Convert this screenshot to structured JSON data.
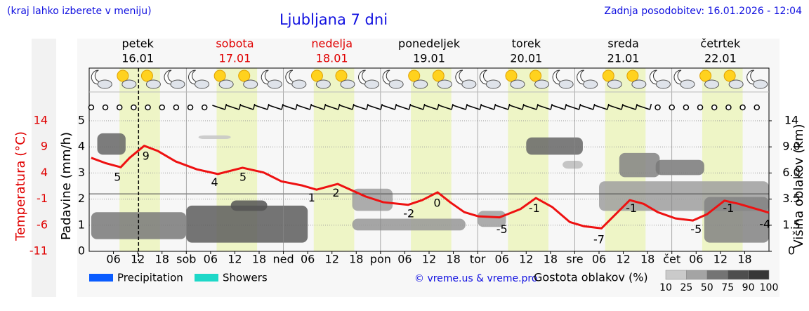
{
  "chart_data": {
    "type": "line",
    "note": "(kraj lahko izberete v meniju)",
    "title": "Ljubljana 7 dni",
    "updated": "Zadnja posodobitev: 16.01.2026 - 12:04",
    "days": [
      {
        "name": "petek",
        "date": "16.01",
        "color": "#000000"
      },
      {
        "name": "sobota",
        "date": "17.01",
        "color": "#e00000"
      },
      {
        "name": "nedelja",
        "date": "18.01",
        "color": "#e00000"
      },
      {
        "name": "ponedeljek",
        "date": "19.01",
        "color": "#000000"
      },
      {
        "name": "torek",
        "date": "20.01",
        "color": "#000000"
      },
      {
        "name": "sreda",
        "date": "21.01",
        "color": "#000000"
      },
      {
        "name": "četrtek",
        "date": "22.01",
        "color": "#000000"
      }
    ],
    "xlim": [
      0,
      168
    ],
    "xticks": [
      {
        "value": 6,
        "label": "06"
      },
      12,
      18,
      {
        "value": 24,
        "label": "sob"
      },
      {
        "value": 30,
        "label": "06"
      },
      {
        "value": 36,
        "label": "12"
      },
      {
        "value": 42,
        "label": "18"
      },
      {
        "value": 48,
        "label": "ned"
      },
      {
        "value": 54,
        "label": "06"
      },
      {
        "value": 60,
        "label": "12"
      },
      {
        "value": 66,
        "label": "18"
      },
      {
        "value": 72,
        "label": "pon"
      },
      {
        "value": 78,
        "label": "06"
      },
      {
        "value": 84,
        "label": "12"
      },
      {
        "value": 90,
        "label": "18"
      },
      {
        "value": 96,
        "label": "tor"
      },
      {
        "value": 102,
        "label": "06"
      },
      {
        "value": 108,
        "label": "12"
      },
      {
        "value": 114,
        "label": "18"
      },
      {
        "value": 120,
        "label": "sre"
      },
      {
        "value": 126,
        "label": "06"
      },
      {
        "value": 132,
        "label": "12"
      },
      {
        "value": 138,
        "label": "18"
      },
      {
        "value": 144,
        "label": "čet"
      },
      {
        "value": 150,
        "label": "06"
      },
      {
        "value": 156,
        "label": "12"
      },
      {
        "value": 162,
        "label": "18"
      }
    ],
    "now_hour": 12.2,
    "daylight_hours": [
      7.5,
      17.5
    ],
    "daylight_color": "#eef5c6",
    "temp_axis": {
      "label": "Temperatura (°C)",
      "color": "#e00000",
      "ylim": [
        -11,
        14
      ],
      "yticks": [
        -11,
        -6,
        -1,
        4,
        9,
        14
      ],
      "freezing": 0
    },
    "precip_axis": {
      "label": "Padavine (mm/h)",
      "ylim": [
        0,
        5
      ],
      "yticks": [
        0,
        1,
        2,
        3,
        4,
        5
      ]
    },
    "cloud_axis": {
      "label": "Višina oblakov (km)",
      "yticks": [
        0,
        1.5,
        3.5,
        {
          "value": 6,
          "label": "6.0"
        },
        {
          "value": 9,
          "label": "9.0"
        },
        14
      ]
    },
    "series": [
      {
        "name": "Temperatura",
        "color": "#ee1111",
        "x": [
          0.5,
          4,
          7.8,
          10,
          13.6,
          17,
          21.4,
          26.6,
          31.8,
          37.9,
          43.1,
          47.5,
          52.7,
          56.2,
          61.4,
          68.3,
          72.7,
          78.8,
          82.3,
          86.1,
          89.2,
          92.7,
          96.2,
          101.4,
          106.6,
          110.4,
          114.4,
          118.8,
          122.3,
          126.6,
          130.1,
          133.6,
          137,
          140.5,
          144.9,
          149.2,
          152.7,
          157,
          160.5,
          164.9,
          168
        ],
        "values": [
          6.9,
          5.9,
          5.1,
          6.9,
          9.2,
          8.2,
          6.2,
          4.7,
          3.8,
          5.0,
          4.1,
          2.4,
          1.6,
          0.8,
          1.9,
          -0.5,
          -1.6,
          -2.1,
          -1.2,
          0.3,
          -1.6,
          -3.5,
          -4.3,
          -4.5,
          -2.9,
          -0.8,
          -2.5,
          -5.4,
          -6.2,
          -6.6,
          -3.9,
          -1.2,
          -1.9,
          -3.5,
          -4.7,
          -5.1,
          -3.9,
          -1.3,
          -1.9,
          -2.9,
          -3.6
        ]
      }
    ],
    "temp_labels": [
      {
        "x": 7,
        "value": 5
      },
      {
        "x": 14,
        "value": 9
      },
      {
        "x": 31,
        "value": 4
      },
      {
        "x": 38,
        "value": 5
      },
      {
        "x": 55,
        "value": 1
      },
      {
        "x": 61,
        "value": 2
      },
      {
        "x": 79,
        "value": -2
      },
      {
        "x": 86,
        "value": 0
      },
      {
        "x": 102,
        "value": -5
      },
      {
        "x": 110,
        "value": -1
      },
      {
        "x": 126,
        "value": -7
      },
      {
        "x": 134,
        "value": -1
      },
      {
        "x": 150,
        "value": -5
      },
      {
        "x": 158,
        "value": -1
      },
      {
        "x": 167,
        "value": -4
      }
    ],
    "clouds": [
      {
        "start": 2,
        "end": 9,
        "bottom": 8.1,
        "top": 11.6,
        "density": 70
      },
      {
        "start": 0.5,
        "end": 24,
        "bottom": 0.7,
        "top": 2.5,
        "density": 60
      },
      {
        "start": 24,
        "end": 54,
        "bottom": 0.5,
        "top": 3.0,
        "density": 75
      },
      {
        "start": 35,
        "end": 44,
        "bottom": 2.6,
        "top": 3.4,
        "density": 80
      },
      {
        "start": 27,
        "end": 35,
        "bottom": 10.5,
        "top": 11.2,
        "density": 20
      },
      {
        "start": 65,
        "end": 75,
        "bottom": 2.6,
        "top": 4.5,
        "density": 40
      },
      {
        "start": 65,
        "end": 93,
        "bottom": 1.2,
        "top": 2.0,
        "density": 45
      },
      {
        "start": 96,
        "end": 103,
        "bottom": 1.4,
        "top": 2.6,
        "density": 40
      },
      {
        "start": 108,
        "end": 122,
        "bottom": 8.1,
        "top": 10.8,
        "density": 70
      },
      {
        "start": 117,
        "end": 122,
        "bottom": 6.5,
        "top": 7.4,
        "density": 25
      },
      {
        "start": 126,
        "end": 168,
        "bottom": 2.6,
        "top": 5.2,
        "density": 40
      },
      {
        "start": 131,
        "end": 141,
        "bottom": 5.6,
        "top": 8.3,
        "density": 55
      },
      {
        "start": 140,
        "end": 152,
        "bottom": 5.8,
        "top": 7.5,
        "density": 60
      },
      {
        "start": 152,
        "end": 168,
        "bottom": 0.5,
        "top": 3.7,
        "density": 55
      }
    ],
    "legend": [
      {
        "name": "Precipitation",
        "color": "#0a5cff"
      },
      {
        "name": "Showers",
        "color": "#1ed8c8"
      }
    ],
    "credit": "© vreme.us & vreme.pro",
    "density_legend": {
      "title": "Gostota oblakov (%)",
      "levels": [
        10,
        25,
        50,
        75,
        90,
        100
      ]
    }
  }
}
